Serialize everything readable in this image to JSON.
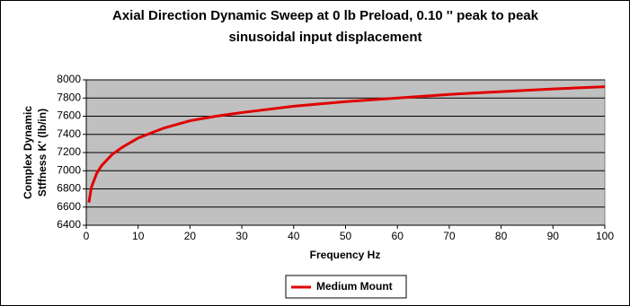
{
  "chart_data": {
    "type": "line",
    "title": [
      "Axial Direction Dynamic Sweep at  0 lb Preload,   0.10 '' peak to peak",
      "sinusoidal input displacement"
    ],
    "x_label": "Frequency Hz",
    "y_label": [
      "Complex Dynamic",
      "Stffness K' (lb/in)"
    ],
    "x": [
      0.5,
      1,
      2,
      3,
      5,
      7,
      10,
      15,
      20,
      25,
      30,
      40,
      50,
      60,
      70,
      80,
      90,
      100
    ],
    "series": [
      {
        "name": "Medium Mount",
        "color": "#e00000",
        "values": [
          6650,
          6820,
          6970,
          7060,
          7180,
          7260,
          7360,
          7470,
          7550,
          7600,
          7640,
          7710,
          7760,
          7800,
          7840,
          7870,
          7900,
          7925
        ]
      }
    ],
    "xlim": [
      0,
      100
    ],
    "xticks": [
      0,
      10,
      20,
      30,
      40,
      50,
      60,
      70,
      80,
      90,
      100
    ],
    "ylim": [
      6400,
      8000
    ],
    "yticks": [
      6400,
      6600,
      6800,
      7000,
      7200,
      7400,
      7600,
      7800,
      8000
    ],
    "grid": true,
    "legend": "bottom"
  }
}
